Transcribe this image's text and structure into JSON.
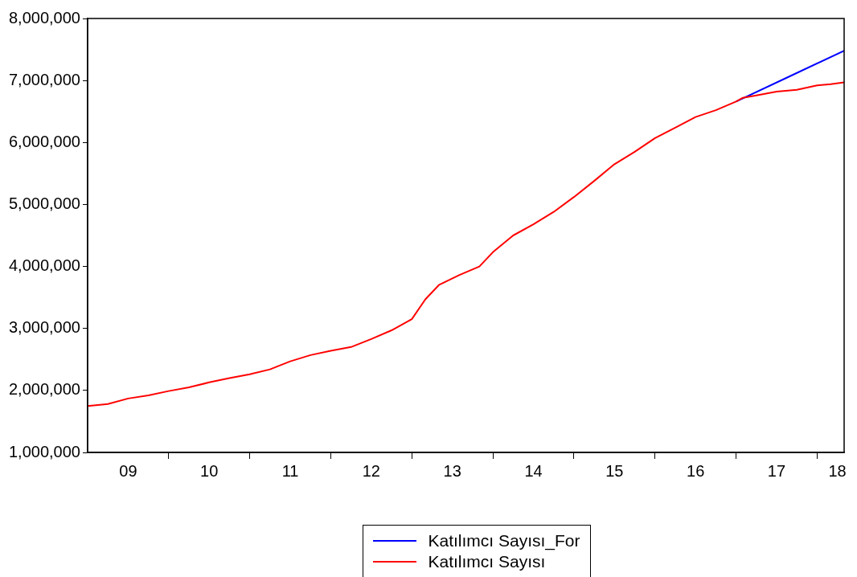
{
  "chart_data": {
    "type": "line",
    "xlim": [
      "2009-01",
      "2018-05"
    ],
    "xticks": [
      {
        "value": "2009-07",
        "label": "09"
      },
      {
        "value": "2010-01",
        "label": null
      },
      {
        "value": "2010-07",
        "label": "10"
      },
      {
        "value": "2011-01",
        "label": null
      },
      {
        "value": "2011-07",
        "label": "11"
      },
      {
        "value": "2012-01",
        "label": null
      },
      {
        "value": "2012-07",
        "label": "12"
      },
      {
        "value": "2013-01",
        "label": null
      },
      {
        "value": "2013-07",
        "label": "13"
      },
      {
        "value": "2014-01",
        "label": null
      },
      {
        "value": "2014-07",
        "label": "14"
      },
      {
        "value": "2015-01",
        "label": null
      },
      {
        "value": "2015-07",
        "label": "15"
      },
      {
        "value": "2016-01",
        "label": null
      },
      {
        "value": "2016-07",
        "label": "16"
      },
      {
        "value": "2017-01",
        "label": null
      },
      {
        "value": "2017-07",
        "label": "17"
      },
      {
        "value": "2018-01",
        "label": null
      },
      {
        "value": "2018-04",
        "label": "18"
      }
    ],
    "ylim": [
      1000000,
      8000000
    ],
    "yticks": [
      {
        "value": 1000000,
        "label": "1,000,000"
      },
      {
        "value": 2000000,
        "label": "2,000,000"
      },
      {
        "value": 3000000,
        "label": "3,000,000"
      },
      {
        "value": 4000000,
        "label": "4,000,000"
      },
      {
        "value": 5000000,
        "label": "5,000,000"
      },
      {
        "value": 6000000,
        "label": "6,000,000"
      },
      {
        "value": 7000000,
        "label": "7,000,000"
      },
      {
        "value": 8000000,
        "label": "8,000,000"
      }
    ],
    "grid": false,
    "legend": "bottom",
    "marker": "none",
    "line_style": "solid",
    "series": [
      {
        "name": "Katılımcı Sayısı_For",
        "color": "#0000ff",
        "x": [
          "2017-01",
          "2017-09",
          "2018-05"
        ],
        "values": [
          6660000,
          7070000,
          7480000
        ]
      },
      {
        "name": "Katılımcı Sayısı",
        "color": "#ff0000",
        "x": [
          "2009-01",
          "2009-04",
          "2009-07",
          "2009-10",
          "2010-01",
          "2010-04",
          "2010-07",
          "2010-10",
          "2011-01",
          "2011-04",
          "2011-07",
          "2011-10",
          "2012-01",
          "2012-04",
          "2012-07",
          "2012-10",
          "2013-01",
          "2013-03",
          "2013-05",
          "2013-08",
          "2013-11",
          "2014-01",
          "2014-04",
          "2014-07",
          "2014-10",
          "2015-01",
          "2015-04",
          "2015-07",
          "2015-10",
          "2016-01",
          "2016-04",
          "2016-07",
          "2016-10",
          "2017-01",
          "2017-02",
          "2017-04",
          "2017-07",
          "2017-10",
          "2018-01",
          "2018-03",
          "2018-05"
        ],
        "values": [
          1750000,
          1780000,
          1870000,
          1920000,
          1990000,
          2050000,
          2130000,
          2200000,
          2260000,
          2340000,
          2470000,
          2570000,
          2640000,
          2700000,
          2830000,
          2970000,
          3150000,
          3470000,
          3700000,
          3860000,
          4000000,
          4230000,
          4500000,
          4680000,
          4880000,
          5120000,
          5380000,
          5650000,
          5850000,
          6070000,
          6240000,
          6410000,
          6520000,
          6660000,
          6720000,
          6760000,
          6820000,
          6850000,
          6920000,
          6940000,
          6970000
        ]
      }
    ]
  }
}
